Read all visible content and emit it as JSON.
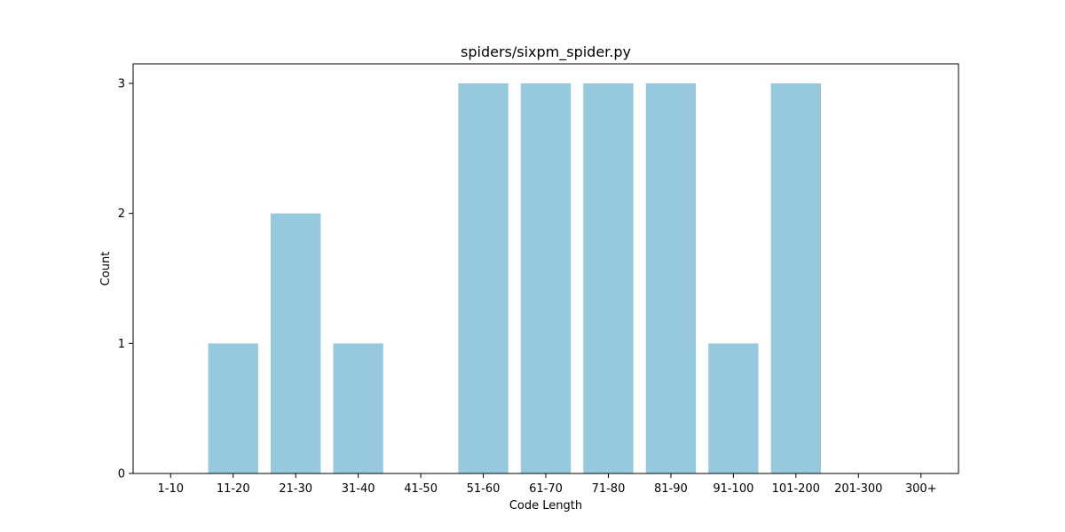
{
  "chart_data": {
    "type": "bar",
    "title": "spiders/sixpm_spider.py",
    "xlabel": "Code Length",
    "ylabel": "Count",
    "categories": [
      "1-10",
      "11-20",
      "21-30",
      "31-40",
      "41-50",
      "51-60",
      "61-70",
      "71-80",
      "81-90",
      "91-100",
      "101-200",
      "201-300",
      "300+"
    ],
    "values": [
      0,
      1,
      2,
      1,
      0,
      3,
      3,
      3,
      3,
      1,
      3,
      0,
      0
    ],
    "yticks": [
      "0",
      "1",
      "2",
      "3"
    ],
    "ylim": [
      0,
      3.15
    ],
    "grid": false,
    "legend": "none",
    "bar_color": "#96c9dd"
  }
}
